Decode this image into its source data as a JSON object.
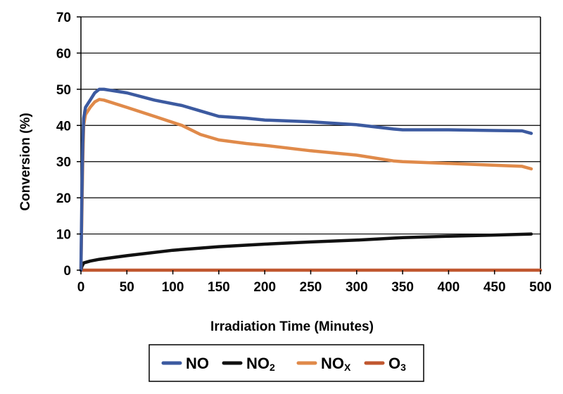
{
  "chart_data": {
    "type": "line",
    "title": "",
    "xlabel": "Irradiation Time (Minutes)",
    "ylabel": "Conversion (%)",
    "xlim": [
      0,
      500
    ],
    "ylim": [
      0,
      70
    ],
    "x_ticks": [
      "0",
      "50",
      "100",
      "150",
      "200",
      "250",
      "300",
      "350",
      "400",
      "450",
      "500"
    ],
    "y_ticks": [
      "0",
      "10",
      "20",
      "30",
      "40",
      "50",
      "60",
      "70"
    ],
    "grid": "horizontal",
    "legend_position": "bottom",
    "series": [
      {
        "name": "NO",
        "label_main": "NO",
        "label_sub": "",
        "color": "#3c5aa0",
        "points": [
          [
            0,
            0
          ],
          [
            1,
            20
          ],
          [
            2,
            35
          ],
          [
            3,
            42
          ],
          [
            5,
            45
          ],
          [
            10,
            47
          ],
          [
            15,
            49
          ],
          [
            20,
            50
          ],
          [
            25,
            50
          ],
          [
            50,
            49
          ],
          [
            80,
            47
          ],
          [
            110,
            45.5
          ],
          [
            130,
            44
          ],
          [
            150,
            42.5
          ],
          [
            180,
            42
          ],
          [
            200,
            41.5
          ],
          [
            250,
            41
          ],
          [
            300,
            40.2
          ],
          [
            340,
            39
          ],
          [
            350,
            38.8
          ],
          [
            400,
            38.8
          ],
          [
            450,
            38.6
          ],
          [
            480,
            38.5
          ],
          [
            490,
            37.8
          ]
        ]
      },
      {
        "name": "NO2",
        "label_main": "NO",
        "label_sub": "2",
        "color": "#111111",
        "points": [
          [
            0,
            0
          ],
          [
            1,
            1
          ],
          [
            3,
            2
          ],
          [
            10,
            2.5
          ],
          [
            20,
            3
          ],
          [
            50,
            4
          ],
          [
            100,
            5.5
          ],
          [
            150,
            6.5
          ],
          [
            200,
            7.2
          ],
          [
            250,
            7.8
          ],
          [
            300,
            8.3
          ],
          [
            350,
            9
          ],
          [
            400,
            9.4
          ],
          [
            450,
            9.7
          ],
          [
            490,
            10
          ]
        ]
      },
      {
        "name": "NOx",
        "label_main": "NO",
        "label_sub": "X",
        "color": "#e08a4a",
        "points": [
          [
            0,
            0
          ],
          [
            1,
            15
          ],
          [
            2,
            30
          ],
          [
            3,
            40
          ],
          [
            5,
            43
          ],
          [
            10,
            45
          ],
          [
            15,
            46.5
          ],
          [
            20,
            47.2
          ],
          [
            25,
            47
          ],
          [
            50,
            45
          ],
          [
            80,
            42.5
          ],
          [
            110,
            40
          ],
          [
            130,
            37.5
          ],
          [
            150,
            36
          ],
          [
            180,
            35
          ],
          [
            200,
            34.5
          ],
          [
            250,
            33
          ],
          [
            300,
            31.8
          ],
          [
            340,
            30.2
          ],
          [
            350,
            30
          ],
          [
            400,
            29.5
          ],
          [
            450,
            29
          ],
          [
            480,
            28.7
          ],
          [
            490,
            28
          ]
        ]
      },
      {
        "name": "O3",
        "label_main": "O",
        "label_sub": "3",
        "color": "#c0572f",
        "points": [
          [
            0,
            0
          ],
          [
            100,
            0
          ],
          [
            200,
            0
          ],
          [
            300,
            0
          ],
          [
            400,
            0
          ],
          [
            500,
            0
          ]
        ]
      }
    ]
  }
}
